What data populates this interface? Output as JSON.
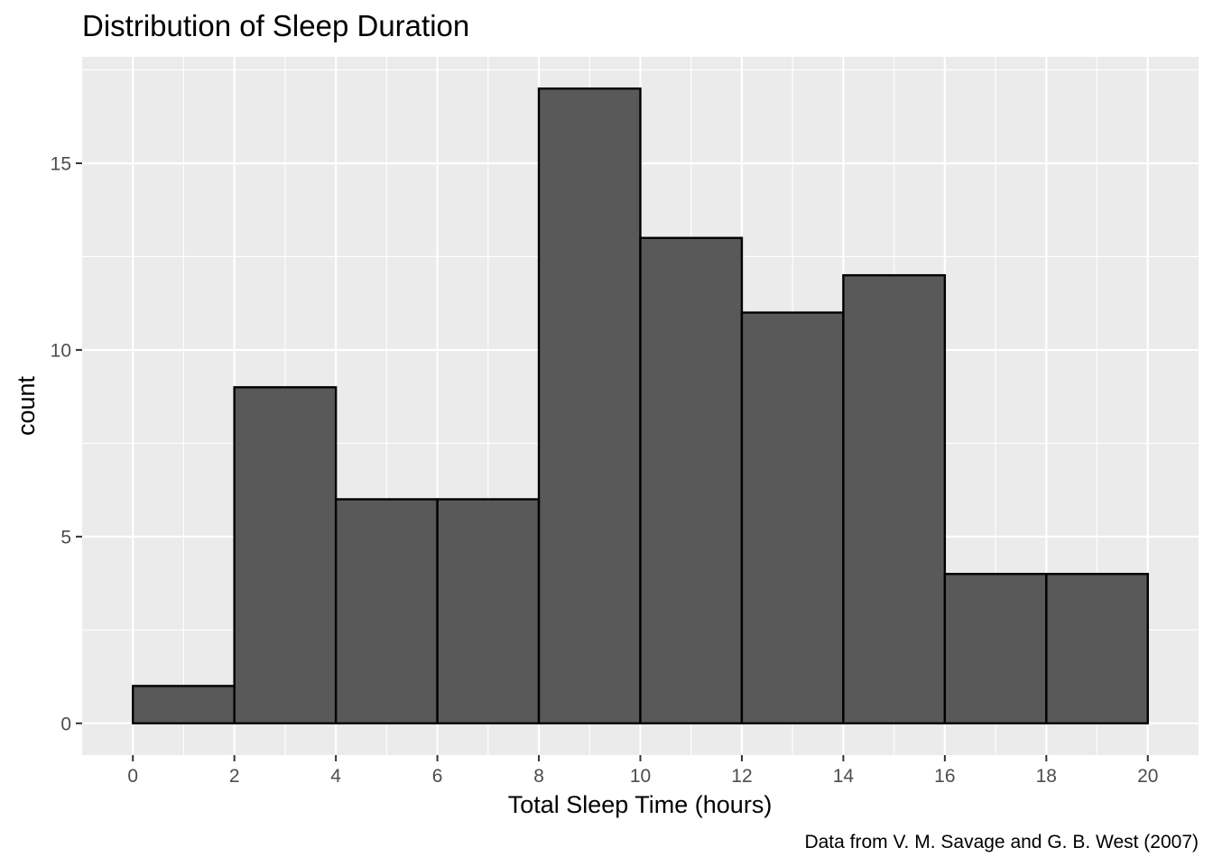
{
  "chart_data": {
    "type": "bar",
    "title": "Distribution of Sleep Duration",
    "xlabel": "Total Sleep Time (hours)",
    "ylabel": "count",
    "caption": "Data from V. M. Savage and G. B. West (2007)",
    "bins": [
      {
        "start": 0,
        "end": 2,
        "count": 1
      },
      {
        "start": 2,
        "end": 4,
        "count": 9
      },
      {
        "start": 4,
        "end": 6,
        "count": 6
      },
      {
        "start": 6,
        "end": 8,
        "count": 6
      },
      {
        "start": 8,
        "end": 10,
        "count": 17
      },
      {
        "start": 10,
        "end": 12,
        "count": 13
      },
      {
        "start": 12,
        "end": 14,
        "count": 11
      },
      {
        "start": 14,
        "end": 16,
        "count": 12
      },
      {
        "start": 16,
        "end": 18,
        "count": 4
      },
      {
        "start": 18,
        "end": 20,
        "count": 4
      }
    ],
    "xlim": [
      -1,
      21
    ],
    "ylim": [
      -0.85,
      17.85
    ],
    "xticks": [
      0,
      2,
      4,
      6,
      8,
      10,
      12,
      14,
      16,
      18,
      20
    ],
    "yticks": [
      0,
      5,
      10,
      15
    ],
    "grid": true,
    "colors": {
      "panel_background": "#ebebeb",
      "grid": "#ffffff",
      "bar_fill": "#595959",
      "bar_outline": "#000000",
      "tick_text": "#4d4d4d",
      "tick_mark": "#333333"
    }
  }
}
